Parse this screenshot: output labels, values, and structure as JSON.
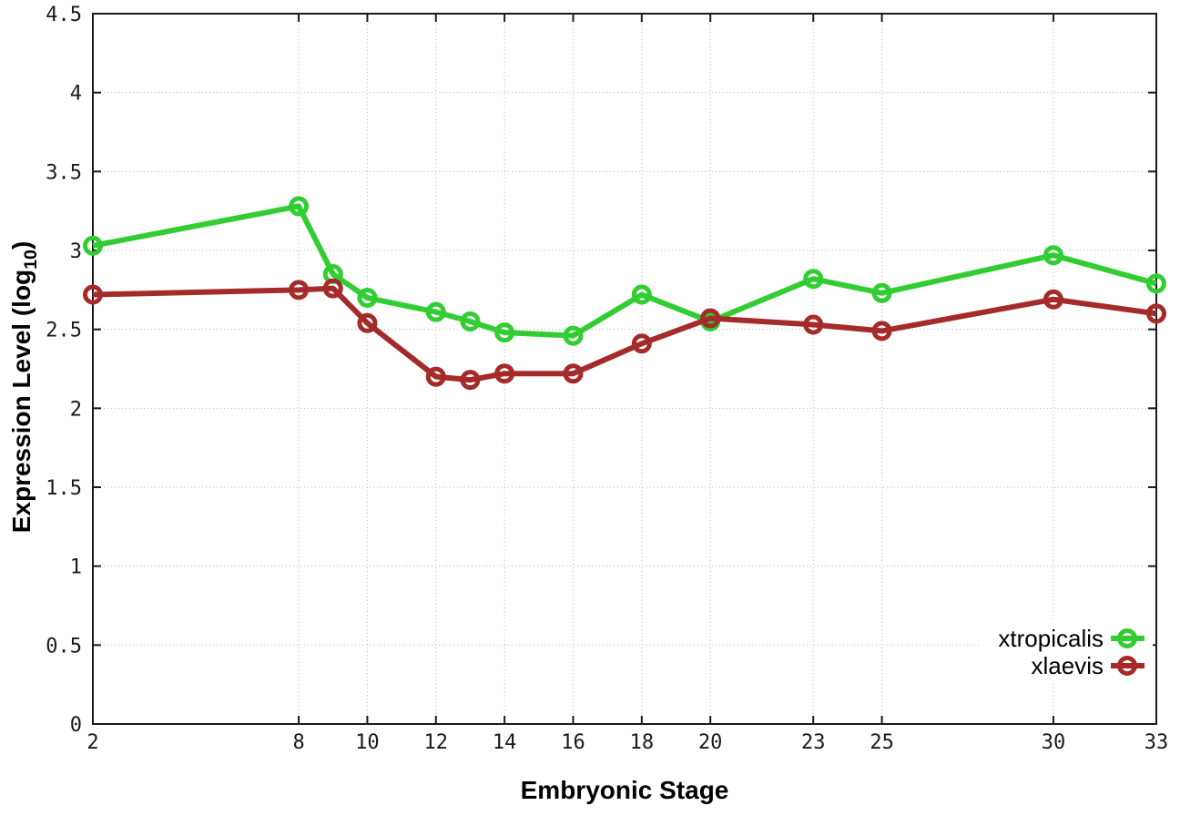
{
  "chart_data": {
    "type": "line",
    "x": [
      2,
      8,
      9,
      10,
      12,
      13,
      14,
      16,
      18,
      20,
      23,
      25,
      30,
      33
    ],
    "series": [
      {
        "name": "xtropicalis",
        "color": "#32cd32",
        "values": [
          3.03,
          3.28,
          2.85,
          2.7,
          2.61,
          2.55,
          2.48,
          2.46,
          2.72,
          2.55,
          2.82,
          2.73,
          2.97,
          2.79
        ]
      },
      {
        "name": "xlaevis",
        "color": "#a52a2a",
        "values": [
          2.72,
          2.75,
          2.76,
          2.54,
          2.2,
          2.18,
          2.22,
          2.22,
          2.41,
          2.57,
          2.53,
          2.49,
          2.69,
          2.6
        ]
      }
    ],
    "title": "",
    "xlabel": "Embryonic Stage",
    "ylabel_main": "Expression Level (log",
    "ylabel_sub": "10",
    "ylabel_close": ")",
    "xlim": [
      2,
      33
    ],
    "ylim": [
      0,
      4.5
    ],
    "xticks": [
      2,
      8,
      10,
      12,
      14,
      16,
      18,
      20,
      23,
      25,
      30,
      33
    ],
    "xtick_labels": [
      "2",
      "8",
      "10",
      "12",
      "14",
      "16",
      "18",
      "20",
      "23",
      "25",
      "30",
      "33"
    ],
    "yticks": [
      0,
      0.5,
      1,
      1.5,
      2,
      2.5,
      3,
      3.5,
      4,
      4.5
    ],
    "ytick_labels": [
      "0",
      "0.5",
      "1",
      "1.5",
      "2",
      "2.5",
      "3",
      "3.5",
      "4",
      "4.5"
    ],
    "grid": true,
    "grid_color": "#b8b8b8",
    "axis_color": "#1a1a1a",
    "background": "#ffffff",
    "legend_position": "bottom-right",
    "marker": "open-circle"
  }
}
